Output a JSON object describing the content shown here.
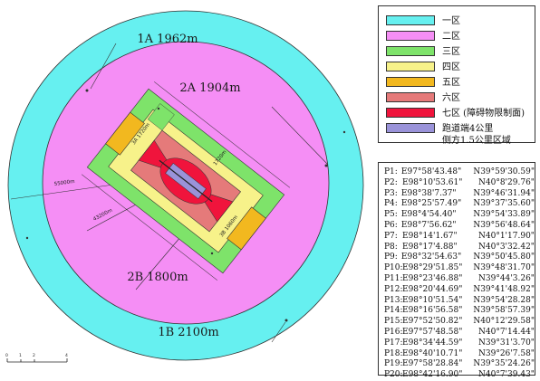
{
  "zones": {
    "outer_a": "1A 1962m",
    "outer_b": "1B 2100m",
    "inner_a": "2A 1904m",
    "inner_b": "2B 1800m",
    "zone3a": "3A 1720m",
    "zone3b": "3B 1060m",
    "dim_55000": "55000m",
    "dim_43200": "43200m",
    "dim_1720": "1720m"
  },
  "legend": [
    {
      "color": "#66f0f0",
      "label": "一区"
    },
    {
      "color": "#f58ef5",
      "label": "二区"
    },
    {
      "color": "#7ee36a",
      "label": "三区"
    },
    {
      "color": "#f7f28a",
      "label": "四区"
    },
    {
      "color": "#f2b81f",
      "label": "五区"
    },
    {
      "color": "#e57a7a",
      "label": "六区"
    },
    {
      "color": "#f0143c",
      "label": "七区 (障碍物限制面)"
    },
    {
      "color": "#9a93d9",
      "label": "跑道端4公里\n侧方1.5公里区域"
    }
  ],
  "coordinates": [
    {
      "id": "P1:",
      "lon": "E97°58'43.48\"",
      "lat": "N39°59'30.59\""
    },
    {
      "id": "P2:",
      "lon": "E98°10'53.61\"",
      "lat": "N40°8'29.76\""
    },
    {
      "id": "P3:",
      "lon": "E98°38'7.37\"",
      "lat": "N39°46'31.94\""
    },
    {
      "id": "P4:",
      "lon": "E98°25'57.49\"",
      "lat": "N39°37'35.60\""
    },
    {
      "id": "P5:",
      "lon": "E98°4'54.40\"",
      "lat": "N39°54'33.89\""
    },
    {
      "id": "P6:",
      "lon": "E98°7'56.62\"",
      "lat": "N39°56'48.64\""
    },
    {
      "id": "P7:",
      "lon": "E98°14'1.67\"",
      "lat": "N40°1'17.90\""
    },
    {
      "id": "P8:",
      "lon": "E98°17'4.88\"",
      "lat": "N40°3'32.42\""
    },
    {
      "id": "P9:",
      "lon": "E98°32'54.63\"",
      "lat": "N39°50'45.80\""
    },
    {
      "id": "P10:",
      "lon": "E98°29'51.85\"",
      "lat": "N39°48'31.70\""
    },
    {
      "id": "P11:",
      "lon": "E98°23'46.88\"",
      "lat": "N39°44'3.26\""
    },
    {
      "id": "P12:",
      "lon": "E98°20'44.69\"",
      "lat": "N39°41'48.92\""
    },
    {
      "id": "P13:",
      "lon": "E98°10'51.54\"",
      "lat": "N39°54'28.28\""
    },
    {
      "id": "P14:",
      "lon": "E98°16'56.58\"",
      "lat": "N39°58'57.39\""
    },
    {
      "id": "P15:",
      "lon": "E97°52'50.82\"",
      "lat": "N40°12'29.58\""
    },
    {
      "id": "P16:",
      "lon": "E97°57'48.58\"",
      "lat": "N40°7'14.44\""
    },
    {
      "id": "P17:",
      "lon": "E98°34'44.59\"",
      "lat": "N39°31'3.70\""
    },
    {
      "id": "P18:",
      "lon": "E98°40'10.71\"",
      "lat": "N39°26'7.58\""
    },
    {
      "id": "P19:",
      "lon": "E97°58'28.84\"",
      "lat": "N39°35'24.26\""
    },
    {
      "id": "P20:",
      "lon": "E98°42'16.90\"",
      "lat": "N40°7'39.43\""
    }
  ],
  "scale_bar": {
    "labels": [
      "0",
      "1",
      "2",
      "4"
    ]
  }
}
